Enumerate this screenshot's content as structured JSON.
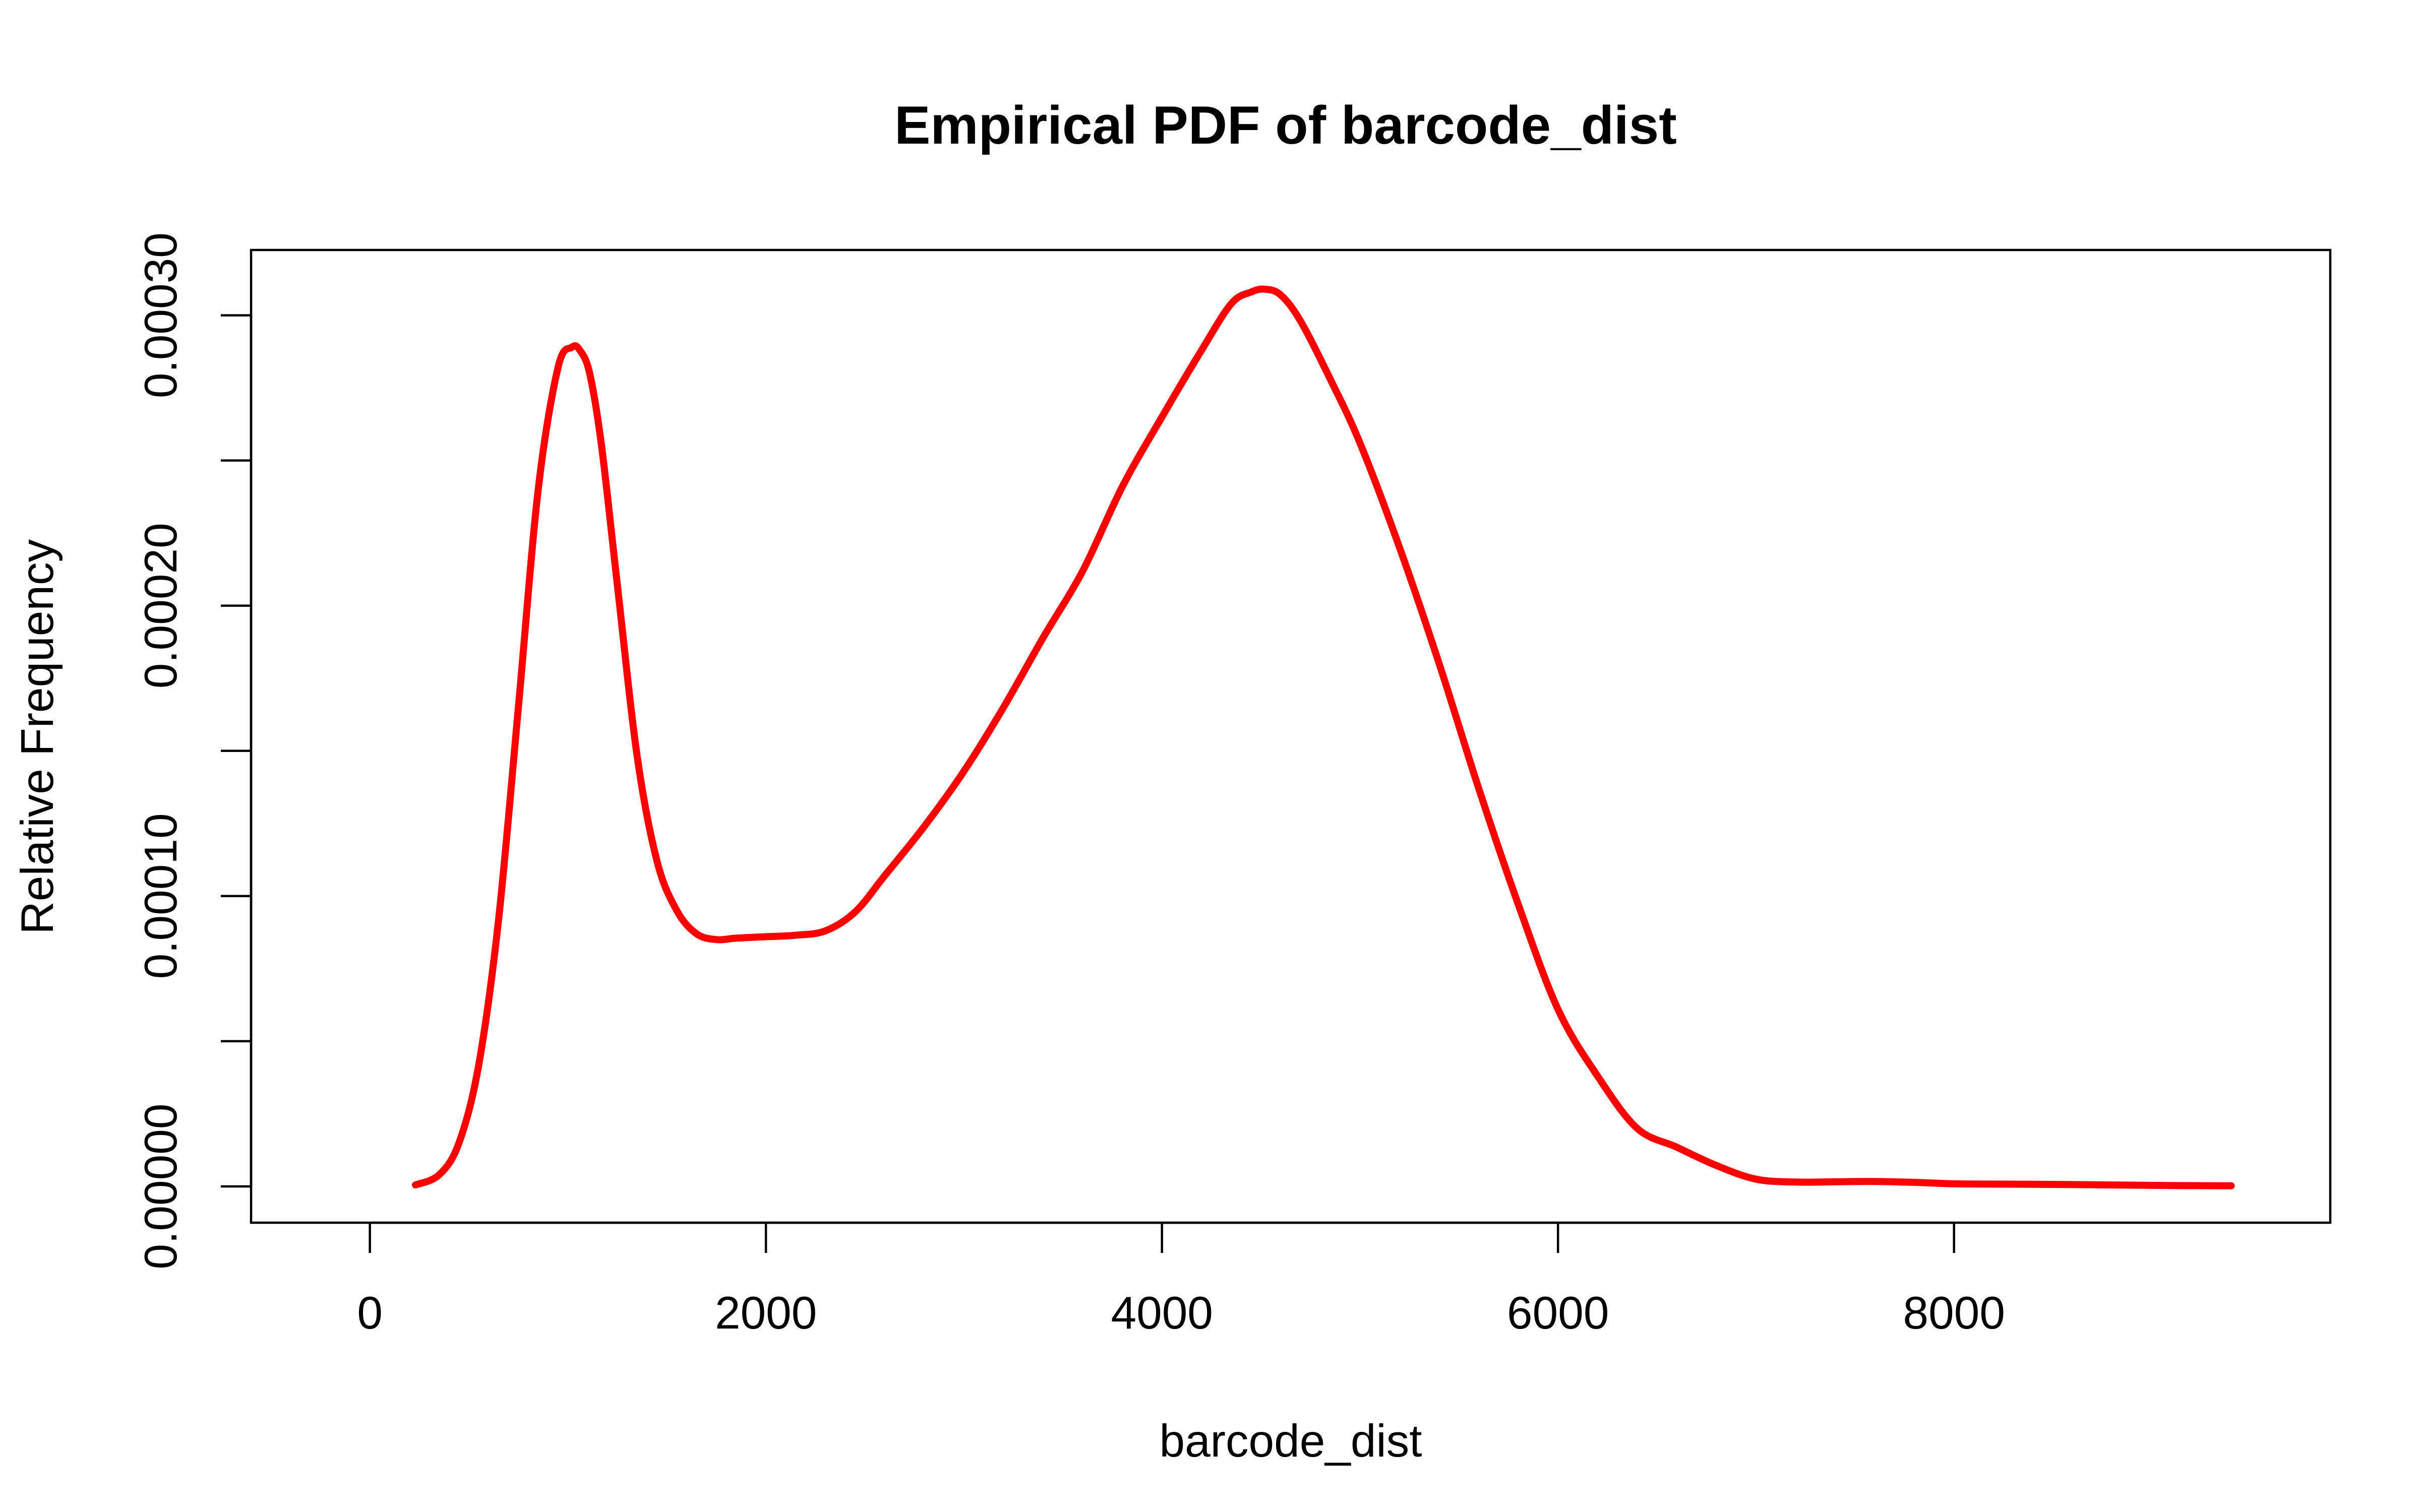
{
  "chart_data": {
    "type": "line",
    "title": "Empirical PDF of barcode_dist",
    "xlabel": "barcode_dist",
    "ylabel": "Relative Frequency",
    "xlim": [
      -600,
      9900
    ],
    "ylim": [
      -1.25e-05,
      0.0003225
    ],
    "x_ticks": [
      0,
      2000,
      4000,
      6000,
      8000
    ],
    "x_tick_labels": [
      "0",
      "2000",
      "4000",
      "6000",
      "8000"
    ],
    "y_ticks": [
      0,
      5e-05,
      0.0001,
      0.00015,
      0.0002,
      0.00025,
      0.0003
    ],
    "y_tick_labels": [
      "0.00000",
      "",
      "0.00010",
      "",
      "0.00020",
      "",
      "0.00030"
    ],
    "grid": false,
    "color": "#ff0000",
    "series": [
      {
        "x": [
          230,
          350,
          450,
          550,
          650,
          750,
          850,
          950,
          1020,
          1060,
          1110,
          1170,
          1250,
          1350,
          1450,
          1550,
          1650,
          1750,
          1850,
          2000,
          2150,
          2300,
          2450,
          2600,
          2800,
          3000,
          3200,
          3400,
          3600,
          3800,
          4000,
          4200,
          4350,
          4450,
          4520,
          4600,
          4700,
          4850,
          5000,
          5200,
          5400,
          5600,
          5800,
          6000,
          6200,
          6400,
          6600,
          6800,
          7000,
          7200,
          7400,
          7600,
          7800,
          8000,
          8200,
          8500,
          8800,
          9100,
          9400
        ],
        "y": [
          5e-07,
          4e-06,
          1.5e-05,
          4.2e-05,
          9.2e-05,
          0.000165,
          0.00024,
          0.000282,
          0.000289,
          0.000288,
          0.00028,
          0.000255,
          0.000207,
          0.000148,
          0.000112,
          9.5e-05,
          8.7e-05,
          8.5e-05,
          8.55e-05,
          8.6e-05,
          8.65e-05,
          8.8e-05,
          9.45e-05,
          0.000107,
          0.000124,
          0.000143,
          0.000165,
          0.000189,
          0.000212,
          0.000241,
          0.000265,
          0.000288,
          0.000304,
          0.000308,
          0.000309,
          0.000307,
          0.000298,
          0.000278,
          0.000256,
          0.00022,
          0.00018,
          0.000137,
          9.7e-05,
          6.1e-05,
          3.8e-05,
          2e-05,
          1.35e-05,
          7.2e-06,
          2.5e-06,
          1.5e-06,
          1.6e-06,
          1.7e-06,
          1.4e-06,
          9e-07,
          8e-07,
          7e-07,
          5e-07,
          3e-07,
          2e-07
        ]
      }
    ]
  }
}
